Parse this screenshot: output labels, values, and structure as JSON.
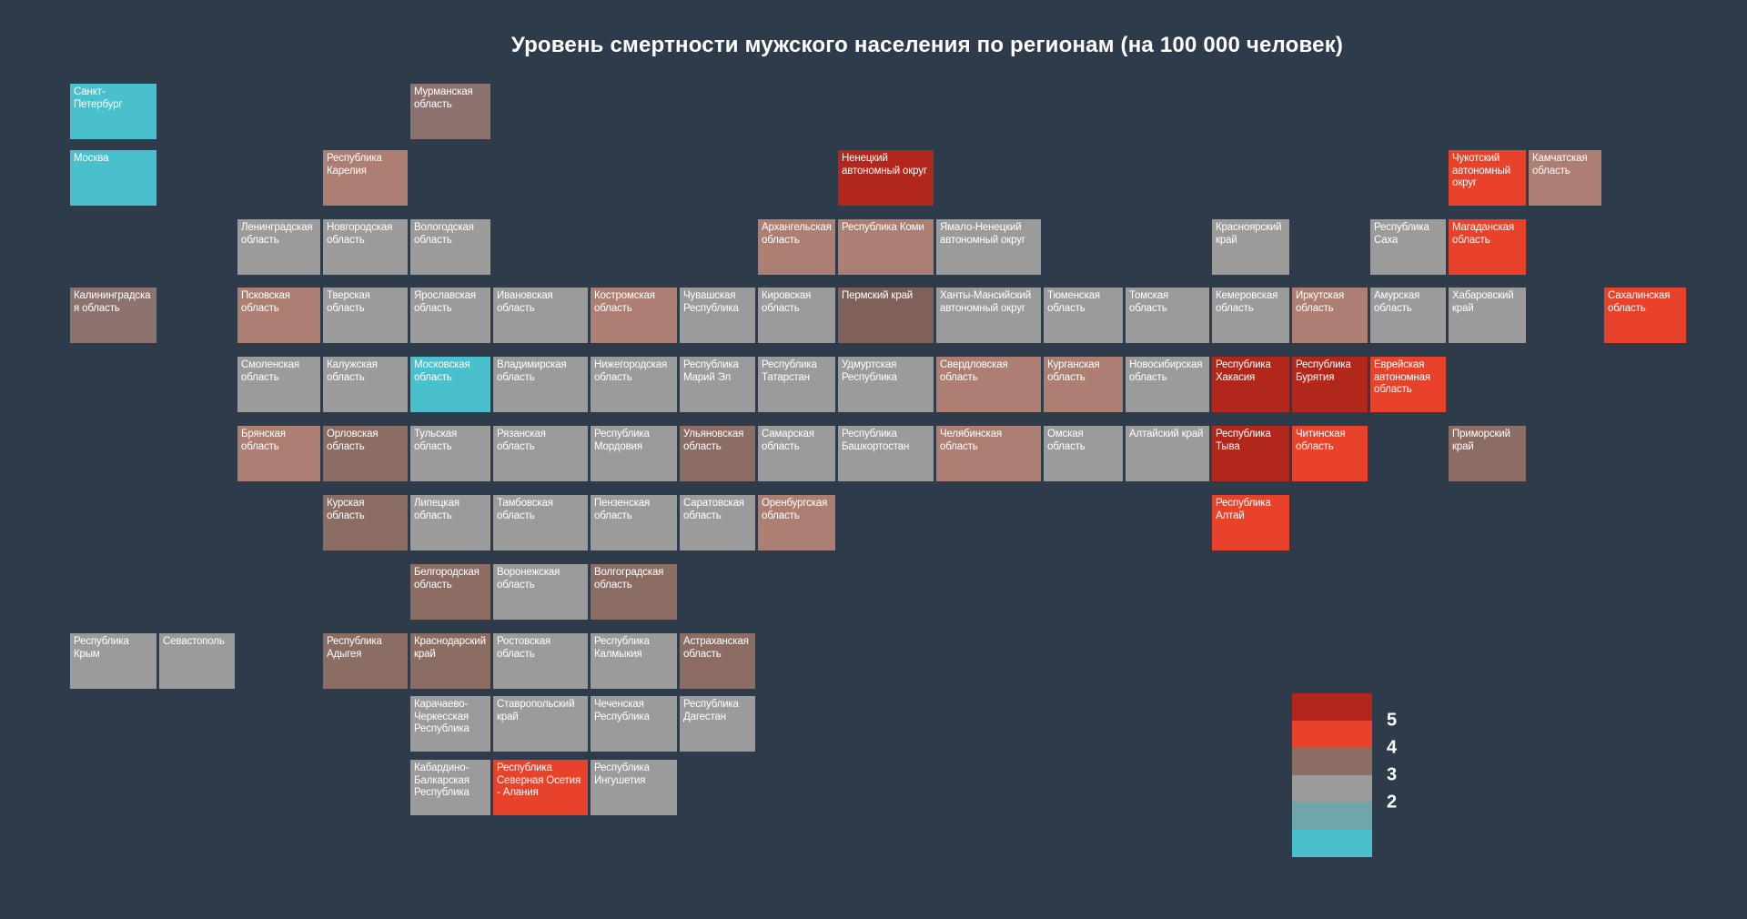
{
  "colors": {
    "background": "#2d3b4b",
    "text": "#ffffff"
  },
  "chart_data": {
    "type": "heatmap",
    "subtype": "tile-cartogram",
    "title": "Уровень смертности мужского населения по регионам (на 100 000 человек)",
    "legend_position": "bottom-right",
    "palette": {
      "teal": "#4ac0cd",
      "teal_muted": "#6fa6ab",
      "gray": "#9b9b9b",
      "graybrown": "#8c7370",
      "mauve": "#ad7f73",
      "brown": "#8c6d63",
      "darkbrown": "#7f6159",
      "orangered": "#e8432a",
      "darkred": "#b2271b"
    },
    "colorbar": {
      "colors_top_to_bottom": [
        "#b2271b",
        "#e8432a",
        "#8c6d63",
        "#9b9b9b",
        "#6fa6ab",
        "#4ac0cd"
      ],
      "tick_labels": [
        "5",
        "4",
        "3",
        "2"
      ]
    },
    "regions": [
      {
        "name": "Санкт-Петербург",
        "row": 0,
        "col": 0,
        "level": "teal"
      },
      {
        "name": "Мурманская область",
        "row": 0,
        "col": 4,
        "level": "graybrown"
      },
      {
        "name": "Москва",
        "row": 1,
        "col": 0,
        "level": "teal"
      },
      {
        "name": "Республика Карелия",
        "row": 1,
        "col": 3,
        "level": "mauve"
      },
      {
        "name": "Ненецкий автономный округ",
        "row": 1,
        "col": 9,
        "level": "darkred"
      },
      {
        "name": "Чукотский автономный округ",
        "row": 1,
        "col": 16,
        "level": "orangered"
      },
      {
        "name": "Камчатская область",
        "row": 1,
        "col": 17,
        "level": "mauve"
      },
      {
        "name": "Ленинградская область",
        "row": 2,
        "col": 2,
        "level": "gray"
      },
      {
        "name": "Новгородская область",
        "row": 2,
        "col": 3,
        "level": "gray"
      },
      {
        "name": "Вологодская область",
        "row": 2,
        "col": 4,
        "level": "gray"
      },
      {
        "name": "Архангельская область",
        "row": 2,
        "col": 8,
        "level": "mauve"
      },
      {
        "name": "Республика Коми",
        "row": 2,
        "col": 9,
        "level": "mauve"
      },
      {
        "name": "Ямало-Ненецкий автономный округ",
        "row": 2,
        "col": 10,
        "level": "gray"
      },
      {
        "name": "Красноярский край",
        "row": 2,
        "col": 13,
        "level": "gray"
      },
      {
        "name": "Республика Саха",
        "row": 2,
        "col": 15,
        "level": "gray"
      },
      {
        "name": "Магаданская область",
        "row": 2,
        "col": 16,
        "level": "orangered"
      },
      {
        "name": "Калининградская область",
        "row": 3,
        "col": 0,
        "level": "graybrown"
      },
      {
        "name": "Псковская область",
        "row": 3,
        "col": 2,
        "level": "mauve"
      },
      {
        "name": "Тверская область",
        "row": 3,
        "col": 3,
        "level": "gray"
      },
      {
        "name": "Ярославская область",
        "row": 3,
        "col": 4,
        "level": "gray"
      },
      {
        "name": "Ивановская область",
        "row": 3,
        "col": 5,
        "level": "gray"
      },
      {
        "name": "Костромская область",
        "row": 3,
        "col": 6,
        "level": "mauve"
      },
      {
        "name": "Чувашская Республика",
        "row": 3,
        "col": 7,
        "level": "gray"
      },
      {
        "name": "Кировская область",
        "row": 3,
        "col": 8,
        "level": "gray"
      },
      {
        "name": "Пермский край",
        "row": 3,
        "col": 9,
        "level": "darkbrown"
      },
      {
        "name": "Ханты-Мансийский автономный округ",
        "row": 3,
        "col": 10,
        "level": "gray"
      },
      {
        "name": "Тюменская область",
        "row": 3,
        "col": 11,
        "level": "gray"
      },
      {
        "name": "Томская область",
        "row": 3,
        "col": 12,
        "level": "gray"
      },
      {
        "name": "Кемеровская область",
        "row": 3,
        "col": 13,
        "level": "gray"
      },
      {
        "name": "Иркутская область",
        "row": 3,
        "col": 14,
        "level": "mauve"
      },
      {
        "name": "Амурская область",
        "row": 3,
        "col": 15,
        "level": "gray"
      },
      {
        "name": "Хабаровский край",
        "row": 3,
        "col": 16,
        "level": "gray"
      },
      {
        "name": "Сахалинская область",
        "row": 3,
        "col": 18,
        "level": "orangered"
      },
      {
        "name": "Смоленская область",
        "row": 4,
        "col": 2,
        "level": "gray"
      },
      {
        "name": "Калужская область",
        "row": 4,
        "col": 3,
        "level": "gray"
      },
      {
        "name": "Московская область",
        "row": 4,
        "col": 4,
        "level": "teal"
      },
      {
        "name": "Владимирская область",
        "row": 4,
        "col": 5,
        "level": "gray"
      },
      {
        "name": "Нижегородская область",
        "row": 4,
        "col": 6,
        "level": "gray"
      },
      {
        "name": "Республика Марий Эл",
        "row": 4,
        "col": 7,
        "level": "gray"
      },
      {
        "name": "Республика Татарстан",
        "row": 4,
        "col": 8,
        "level": "gray"
      },
      {
        "name": "Удмуртская Республика",
        "row": 4,
        "col": 9,
        "level": "gray"
      },
      {
        "name": "Свердловская область",
        "row": 4,
        "col": 10,
        "level": "mauve"
      },
      {
        "name": "Курганская область",
        "row": 4,
        "col": 11,
        "level": "mauve"
      },
      {
        "name": "Новосибирская область",
        "row": 4,
        "col": 12,
        "level": "gray"
      },
      {
        "name": "Республика Хакасия",
        "row": 4,
        "col": 13,
        "level": "darkred"
      },
      {
        "name": "Республика Бурятия",
        "row": 4,
        "col": 14,
        "level": "darkred"
      },
      {
        "name": "Еврейская автономная область",
        "row": 4,
        "col": 15,
        "level": "orangered"
      },
      {
        "name": "Брянская область",
        "row": 5,
        "col": 2,
        "level": "mauve"
      },
      {
        "name": "Орловская область",
        "row": 5,
        "col": 3,
        "level": "brown"
      },
      {
        "name": "Тульская область",
        "row": 5,
        "col": 4,
        "level": "gray"
      },
      {
        "name": "Рязанская область",
        "row": 5,
        "col": 5,
        "level": "gray"
      },
      {
        "name": "Республика Мордовия",
        "row": 5,
        "col": 6,
        "level": "gray"
      },
      {
        "name": "Ульяновская область",
        "row": 5,
        "col": 7,
        "level": "brown"
      },
      {
        "name": "Самарская область",
        "row": 5,
        "col": 8,
        "level": "gray"
      },
      {
        "name": "Республика Башкортостан",
        "row": 5,
        "col": 9,
        "level": "gray"
      },
      {
        "name": "Челябинская область",
        "row": 5,
        "col": 10,
        "level": "mauve"
      },
      {
        "name": "Омская область",
        "row": 5,
        "col": 11,
        "level": "gray"
      },
      {
        "name": "Алтайский край",
        "row": 5,
        "col": 12,
        "level": "gray"
      },
      {
        "name": "Республика Тыва",
        "row": 5,
        "col": 13,
        "level": "darkred"
      },
      {
        "name": "Читинская область",
        "row": 5,
        "col": 14,
        "level": "orangered"
      },
      {
        "name": "Приморский край",
        "row": 5,
        "col": 16,
        "level": "brown"
      },
      {
        "name": "Курская область",
        "row": 6,
        "col": 3,
        "level": "brown"
      },
      {
        "name": "Липецкая область",
        "row": 6,
        "col": 4,
        "level": "gray"
      },
      {
        "name": "Тамбовская область",
        "row": 6,
        "col": 5,
        "level": "gray"
      },
      {
        "name": "Пензенская область",
        "row": 6,
        "col": 6,
        "level": "gray"
      },
      {
        "name": "Саратовская область",
        "row": 6,
        "col": 7,
        "level": "gray"
      },
      {
        "name": "Оренбургская область",
        "row": 6,
        "col": 8,
        "level": "mauve"
      },
      {
        "name": "Республика Алтай",
        "row": 6,
        "col": 13,
        "level": "orangered"
      },
      {
        "name": "Белгородская область",
        "row": 7,
        "col": 4,
        "level": "brown"
      },
      {
        "name": "Воронежская область",
        "row": 7,
        "col": 5,
        "level": "gray"
      },
      {
        "name": "Волгоградская область",
        "row": 7,
        "col": 6,
        "level": "brown"
      },
      {
        "name": "Республика Крым",
        "row": 8,
        "col": 0,
        "level": "gray"
      },
      {
        "name": "Севастополь",
        "row": 8,
        "col": 1,
        "level": "gray"
      },
      {
        "name": "Республика Адыгея",
        "row": 8,
        "col": 3,
        "level": "brown"
      },
      {
        "name": "Краснодарский край",
        "row": 8,
        "col": 4,
        "level": "brown"
      },
      {
        "name": "Ростовская область",
        "row": 8,
        "col": 5,
        "level": "gray"
      },
      {
        "name": "Республика Калмыкия",
        "row": 8,
        "col": 6,
        "level": "gray"
      },
      {
        "name": "Астраханская область",
        "row": 8,
        "col": 7,
        "level": "brown"
      },
      {
        "name": "Карачаево-Черкесская Республика",
        "row": 9,
        "col": 4,
        "level": "gray"
      },
      {
        "name": "Ставропольский край",
        "row": 9,
        "col": 5,
        "level": "gray"
      },
      {
        "name": "Чеченская Республика",
        "row": 9,
        "col": 6,
        "level": "gray"
      },
      {
        "name": "Республика Дагестан",
        "row": 9,
        "col": 7,
        "level": "gray"
      },
      {
        "name": "Кабардино-Балкарская Республика",
        "row": 10,
        "col": 4,
        "level": "gray"
      },
      {
        "name": "Республика Северная Осетия - Алания",
        "row": 10,
        "col": 5,
        "level": "orangered"
      },
      {
        "name": "Республика Ингушетия",
        "row": 10,
        "col": 6,
        "level": "gray"
      }
    ]
  }
}
